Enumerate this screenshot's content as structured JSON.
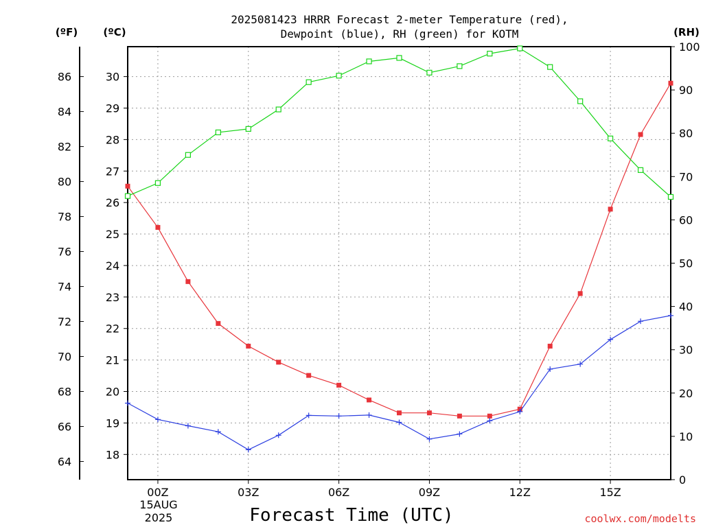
{
  "title_line1": "2025081423 HRRR Forecast 2-meter Temperature (red),",
  "title_line2": "Dewpoint (blue), RH (green) for KOTM",
  "credit": "coolwx.com/modelts",
  "units": {
    "fahrenheit": "(ºF)",
    "celsius": "(ºC)",
    "rh": "(RH)"
  },
  "date_label": {
    "day": "15AUG",
    "year": "2025"
  },
  "colors": {
    "temperature": "#e8343a",
    "dewpoint": "#2b3ee0",
    "rh": "#18d418",
    "credit": "#e03030",
    "grid": "#9a9a9a"
  },
  "chart_data": {
    "type": "line",
    "title": "2025081423 HRRR Forecast 2-meter Temperature (red), Dewpoint (blue), RH (green) for KOTM",
    "xlabel": "Forecast Time (UTC)",
    "x_hours": [
      -1,
      0,
      1,
      2,
      3,
      4,
      5,
      6,
      7,
      8,
      9,
      10,
      11,
      12,
      13,
      14,
      15,
      16,
      17
    ],
    "xlim": [
      -1,
      17
    ],
    "x_ticks": [
      {
        "hour": 0,
        "label": "00Z"
      },
      {
        "hour": 3,
        "label": "03Z"
      },
      {
        "hour": 6,
        "label": "06Z"
      },
      {
        "hour": 9,
        "label": "09Z"
      },
      {
        "hour": 12,
        "label": "12Z"
      },
      {
        "hour": 15,
        "label": "15Z"
      }
    ],
    "ylim_celsius": [
      17.2,
      30.95
    ],
    "ylim_rh": [
      0,
      100
    ],
    "celsius_ticks": [
      18,
      19,
      20,
      21,
      22,
      23,
      24,
      25,
      26,
      27,
      28,
      29,
      30
    ],
    "fahrenheit_ticks": [
      64,
      66,
      68,
      70,
      72,
      74,
      76,
      78,
      80,
      82,
      84,
      86
    ],
    "rh_ticks": [
      0,
      10,
      20,
      30,
      40,
      50,
      60,
      70,
      80,
      90,
      100
    ],
    "grid": true,
    "series": [
      {
        "name": "Temperature",
        "axis": "celsius",
        "marker": "square-filled",
        "values": [
          26.52,
          25.21,
          23.49,
          22.16,
          21.44,
          20.93,
          20.51,
          20.2,
          19.73,
          19.32,
          19.32,
          19.22,
          19.22,
          19.44,
          21.44,
          23.11,
          25.79,
          28.16,
          29.79
        ]
      },
      {
        "name": "Dewpoint",
        "axis": "celsius",
        "marker": "plus",
        "values": [
          19.63,
          19.11,
          18.91,
          18.72,
          18.15,
          18.61,
          19.24,
          19.22,
          19.25,
          19.02,
          18.49,
          18.65,
          19.07,
          19.36,
          20.71,
          20.87,
          21.65,
          22.23,
          22.41
        ]
      },
      {
        "name": "RH",
        "axis": "rh",
        "marker": "square-open",
        "values": [
          65.5,
          68.5,
          75,
          80.2,
          81,
          85.5,
          91.8,
          93.3,
          96.6,
          97.4,
          94,
          95.5,
          98.4,
          99.6,
          95.3,
          87.4,
          78.8,
          71.5,
          65.3
        ]
      }
    ]
  }
}
